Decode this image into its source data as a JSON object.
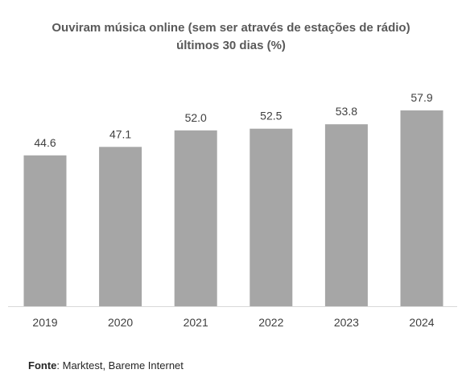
{
  "chart_data": {
    "type": "bar",
    "title_line1": "Ouviram música online (sem ser através de estações de rádio)",
    "title_line2": "últimos 30 dias (%)",
    "categories": [
      "2019",
      "2020",
      "2021",
      "2022",
      "2023",
      "2024"
    ],
    "values": [
      44.6,
      47.1,
      52.0,
      52.5,
      53.8,
      57.9
    ],
    "value_labels": [
      "44.6",
      "47.1",
      "52.0",
      "52.5",
      "53.8",
      "57.9"
    ],
    "xlabel": "",
    "ylabel": "",
    "ylim": [
      0,
      57.9
    ],
    "grid": false,
    "legend": "none",
    "bar_color": "#a6a6a6",
    "axis_color": "#d9d9d9"
  },
  "source": {
    "label": "Fonte",
    "text": ": Marktest, Bareme Internet"
  }
}
